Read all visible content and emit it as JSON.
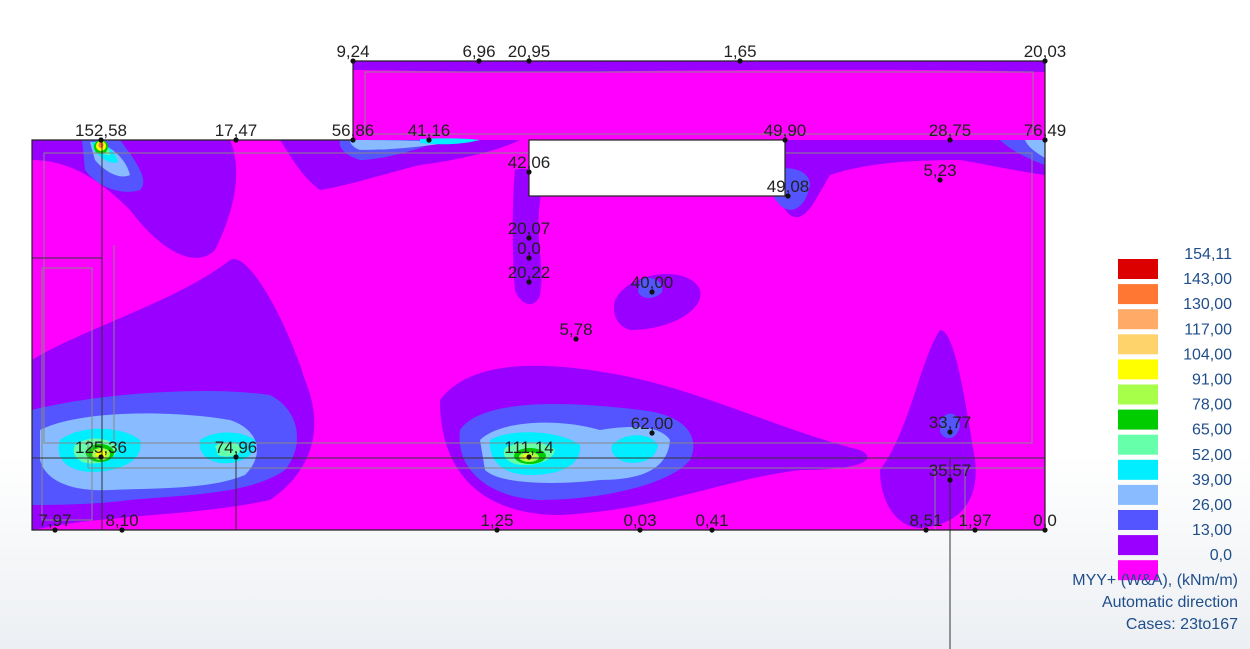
{
  "legend": {
    "levels": [
      {
        "value": "154,11",
        "color": "#dd0000"
      },
      {
        "value": "143,00",
        "color": "#ff7733"
      },
      {
        "value": "130,00",
        "color": "#ffaa66"
      },
      {
        "value": "117,00",
        "color": "#ffd36b"
      },
      {
        "value": "104,00",
        "color": "#ffff00"
      },
      {
        "value": "91,00",
        "color": "#a8ff4a"
      },
      {
        "value": "78,00",
        "color": "#00cc00"
      },
      {
        "value": "65,00",
        "color": "#66ffaa"
      },
      {
        "value": "52,00",
        "color": "#00eeff"
      },
      {
        "value": "39,00",
        "color": "#88bbff"
      },
      {
        "value": "26,00",
        "color": "#5555ff"
      },
      {
        "value": "13,00",
        "color": "#9900ff"
      },
      {
        "value": "0,0",
        "color": "#ff00ff"
      }
    ],
    "quantity": "MYY+ (W&A), (kNm/m)",
    "direction": "Automatic direction",
    "cases": "Cases: 23to167"
  },
  "point_values": [
    "9,24",
    "6,96",
    "20,95",
    "1,65",
    "20,03",
    "152,58",
    "17,47",
    "56,86",
    "41,16",
    "49,90",
    "28,75",
    "76,49",
    "42,06",
    "49,08",
    "5,23",
    "20,07",
    "0,0",
    "20,22",
    "40,00",
    "5,78",
    "62,00",
    "33,77",
    "125,36",
    "74,96",
    "111,14",
    "35,57",
    "7,97",
    "8,10",
    "1,25",
    "0,03",
    "0,41",
    "8,51",
    "1,97",
    "0,0"
  ],
  "colors": {
    "base": "#ff00ff",
    "level13": "#9900ff",
    "level26": "#5555ff",
    "level39": "#88bbff",
    "level52": "#00eeff",
    "level65": "#66ffaa",
    "level78": "#00cc00",
    "level91": "#a8ff4a",
    "level104": "#ffff00"
  }
}
